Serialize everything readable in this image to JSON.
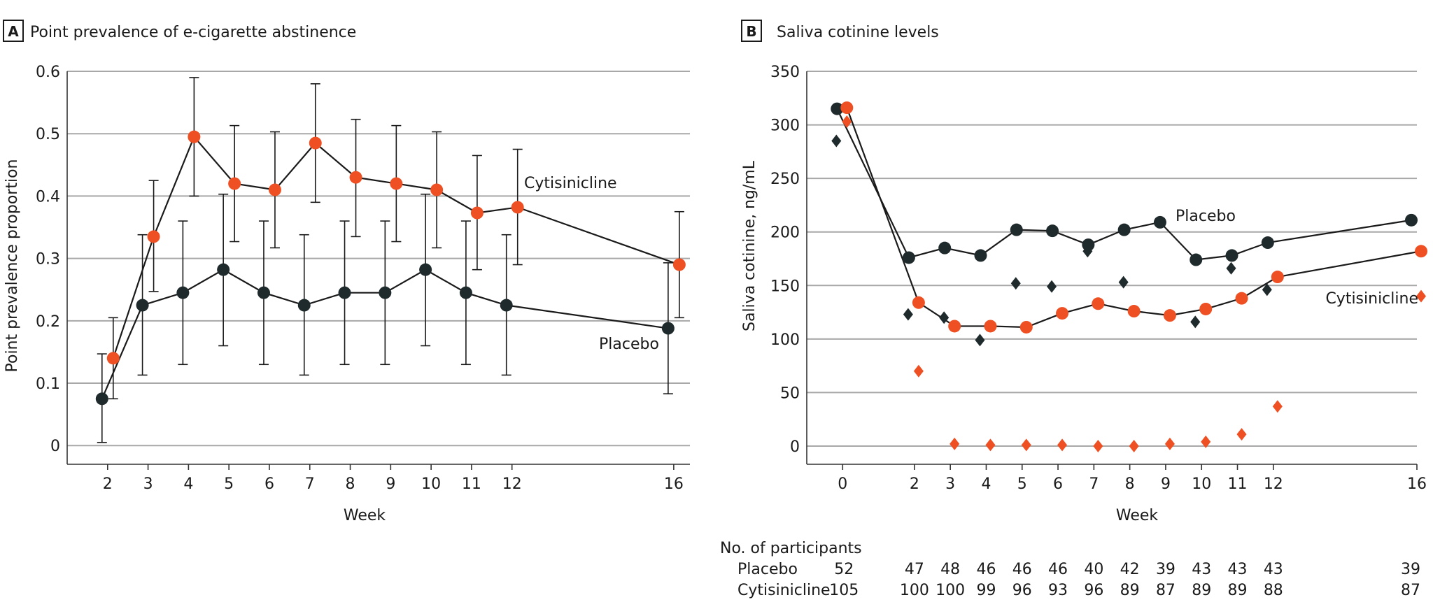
{
  "colors": {
    "placebo": "#1f2a2c",
    "cytisinicline": "#ef5023",
    "grid": "#a8a8a8",
    "text": "#1a1a1a"
  },
  "chart_data": [
    {
      "type": "line",
      "panel_letter": "A",
      "title": "Point prevalence of e-cigarette abstinence",
      "xlabel": "Week",
      "ylabel": "Point prevalence proportion",
      "xlim": [
        1,
        16.4
      ],
      "ylim": [
        -0.03,
        0.6
      ],
      "x_ticks": [
        2,
        3,
        4,
        5,
        6,
        7,
        8,
        9,
        10,
        11,
        12,
        16
      ],
      "y_ticks": [
        "0",
        "0.1",
        "0.2",
        "0.3",
        "0.4",
        "0.5",
        "0.6"
      ],
      "grid": "horizontal",
      "series": [
        {
          "name": "Cytisinicline",
          "color": "#ef5023",
          "x": [
            2,
            3,
            4,
            5,
            6,
            7,
            8,
            9,
            10,
            11,
            12,
            16
          ],
          "y": [
            0.14,
            0.335,
            0.495,
            0.42,
            0.41,
            0.485,
            0.43,
            0.42,
            0.41,
            0.373,
            0.382,
            0.29
          ],
          "y_lower": [
            0.075,
            0.247,
            0.4,
            0.327,
            0.317,
            0.39,
            0.335,
            0.327,
            0.317,
            0.282,
            0.29,
            0.205
          ],
          "y_upper": [
            0.205,
            0.425,
            0.59,
            0.513,
            0.503,
            0.58,
            0.523,
            0.513,
            0.503,
            0.465,
            0.475,
            0.375
          ]
        },
        {
          "name": "Placebo",
          "color": "#1f2a2c",
          "x": [
            2,
            3,
            4,
            5,
            6,
            7,
            8,
            9,
            10,
            11,
            12,
            16
          ],
          "y": [
            0.075,
            0.225,
            0.245,
            0.282,
            0.245,
            0.225,
            0.245,
            0.245,
            0.282,
            0.245,
            0.225,
            0.188
          ],
          "y_lower": [
            0.005,
            0.113,
            0.13,
            0.16,
            0.13,
            0.113,
            0.13,
            0.13,
            0.16,
            0.13,
            0.113,
            0.083
          ],
          "y_upper": [
            0.147,
            0.338,
            0.36,
            0.403,
            0.36,
            0.338,
            0.36,
            0.36,
            0.403,
            0.36,
            0.338,
            0.293
          ]
        }
      ],
      "annotations": [
        "Cytisinicline",
        "Placebo"
      ]
    },
    {
      "type": "line",
      "panel_letter": "B",
      "title": "Saliva cotinine levels",
      "xlabel": "Week",
      "ylabel": "Saliva cotinine, ng/mL",
      "xlim": [
        -1,
        16
      ],
      "ylim": [
        -17,
        350
      ],
      "x_ticks": [
        0,
        2,
        3,
        4,
        5,
        6,
        7,
        8,
        9,
        10,
        11,
        12,
        16
      ],
      "y_ticks": [
        "0",
        "50",
        "100",
        "150",
        "200",
        "250",
        "300",
        "350"
      ],
      "grid": "horizontal",
      "series": [
        {
          "name": "Placebo",
          "marker": "circle",
          "color": "#1f2a2c",
          "x": [
            0,
            2,
            3,
            4,
            5,
            6,
            7,
            8,
            9,
            10,
            11,
            12,
            16
          ],
          "y": [
            315,
            176,
            185,
            178,
            202,
            201,
            188,
            202,
            209,
            174,
            178,
            190,
            211
          ]
        },
        {
          "name": "Cytisinicline",
          "marker": "circle",
          "color": "#ef5023",
          "x": [
            0,
            2,
            3,
            4,
            5,
            6,
            7,
            8,
            9,
            10,
            11,
            12,
            16
          ],
          "y": [
            316,
            134,
            112,
            112,
            111,
            124,
            133,
            126,
            122,
            128,
            138,
            158,
            182
          ]
        },
        {
          "name": "Placebo",
          "marker": "diamond",
          "color": "#1f2a2c",
          "x": [
            0,
            2,
            3,
            4,
            5,
            6,
            7,
            8,
            10,
            11,
            12
          ],
          "y": [
            285,
            123,
            120,
            99,
            152,
            149,
            182,
            153,
            116,
            166,
            146
          ]
        },
        {
          "name": "Cytisinicline",
          "marker": "diamond",
          "color": "#ef5023",
          "x": [
            0,
            2,
            3,
            4,
            5,
            6,
            7,
            8,
            9,
            10,
            11,
            12,
            16
          ],
          "y": [
            303,
            70,
            2,
            1,
            1,
            1,
            0,
            0,
            2,
            4,
            11,
            37,
            140
          ]
        }
      ],
      "annotations": [
        "Placebo",
        "Cytisinicline"
      ]
    }
  ],
  "participants_table": {
    "heading": "No. of participants",
    "rows": [
      {
        "label": "Placebo",
        "weeks": [
          0,
          2,
          3,
          4,
          5,
          6,
          7,
          8,
          9,
          10,
          11,
          12,
          16
        ],
        "values": [
          "52",
          "47",
          "48",
          "46",
          "46",
          "46",
          "40",
          "42",
          "39",
          "43",
          "43",
          "43",
          "39"
        ]
      },
      {
        "label": "Cytisinicline",
        "weeks": [
          0,
          2,
          3,
          4,
          5,
          6,
          7,
          8,
          9,
          10,
          11,
          12,
          16
        ],
        "values": [
          "105",
          "100",
          "100",
          "99",
          "96",
          "93",
          "96",
          "89",
          "87",
          "89",
          "89",
          "88",
          "87"
        ]
      }
    ]
  }
}
